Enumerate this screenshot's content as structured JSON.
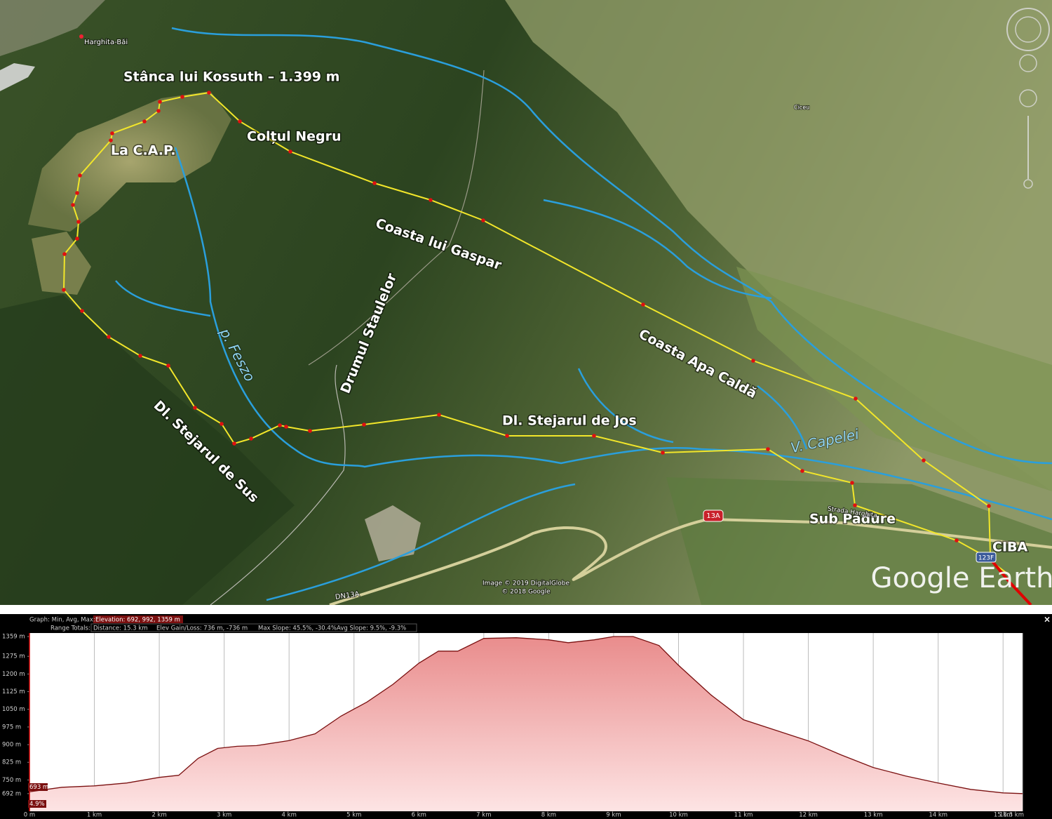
{
  "map": {
    "labels": {
      "peak": "Stânca lui Kossuth – 1.399 m",
      "coltul_negru": "Colțul Negru",
      "la_cap": "La C.A.P.",
      "coasta_gaspar": "Coasta lui Gaspar",
      "drumul_staulelor": "Drumul Staulelor",
      "p_feszo": "p. Feszo",
      "coasta_apa_calda": "Coasta Apa Caldă",
      "stejarul_sus": "Dl. Stejarul de Sus",
      "stejarul_jos": "Dl. Stejarul de Jos",
      "v_capelei": "V. Capelei",
      "sub_padure": "Sub Padure",
      "ciba": "CIBA",
      "harghita_bai": "Harghita-Băi",
      "ciceu": "Ciceu",
      "strada": "Strada Harghita",
      "road_13a": "13A",
      "road_123f": "123F",
      "dn13a": "DN13A"
    },
    "attribution": [
      "Image © 2019 DigitalGlobe",
      "© 2018 Google"
    ],
    "logo": "Google Earth"
  },
  "profile": {
    "close": "×",
    "header": {
      "graph_label": "Graph: Min, Avg, Max:",
      "elevation": "Elevation: 692, 992, 1359 m",
      "range_label": "Range Totals:",
      "distance": "Distance: 15.3 km",
      "elev_gain_loss": "Elev Gain/Loss: 736 m, -736 m",
      "max_slope": "Max Slope: 45.5%, -30.4%",
      "avg_slope": "Avg Slope: 9.5%, -9.3%"
    },
    "cursor": {
      "elevation": "693 m",
      "slope": "4.9%"
    }
  },
  "chart_data": {
    "type": "area",
    "x": [
      0,
      0.5,
      1,
      1.5,
      2,
      2.3,
      2.6,
      2.9,
      3.2,
      3.5,
      4,
      4.4,
      4.8,
      5.2,
      5.6,
      6,
      6.3,
      6.6,
      7,
      7.5,
      8,
      8.3,
      8.7,
      9,
      9.3,
      9.7,
      10,
      10.5,
      11,
      11.5,
      12,
      12.5,
      13,
      13.5,
      14,
      14.5,
      15,
      15.3
    ],
    "values": [
      700,
      719,
      725,
      737,
      761,
      770,
      842,
      884,
      893,
      896,
      917,
      946,
      1021,
      1081,
      1156,
      1246,
      1297,
      1297,
      1351,
      1354,
      1345,
      1333,
      1345,
      1359,
      1359,
      1321,
      1237,
      1111,
      1006,
      961,
      916,
      857,
      803,
      767,
      737,
      710,
      695,
      692
    ],
    "line_color": "#7a1010",
    "fill_color": "#e98c8c",
    "xlim": [
      0,
      15.3
    ],
    "ylim": [
      617,
      1374
    ],
    "grid": "x",
    "xticks": [
      {
        "value": 0,
        "label": "0 m"
      },
      {
        "value": 1,
        "label": "1 km"
      },
      {
        "value": 2,
        "label": "2 km"
      },
      {
        "value": 3,
        "label": "3 km"
      },
      {
        "value": 4,
        "label": "4 km"
      },
      {
        "value": 5,
        "label": "5 km"
      },
      {
        "value": 6,
        "label": "6 km"
      },
      {
        "value": 7,
        "label": "7 km"
      },
      {
        "value": 8,
        "label": "8 km"
      },
      {
        "value": 9,
        "label": "9 km"
      },
      {
        "value": 10,
        "label": "10 km"
      },
      {
        "value": 11,
        "label": "11 km"
      },
      {
        "value": 12,
        "label": "12 km"
      },
      {
        "value": 13,
        "label": "13 km"
      },
      {
        "value": 14,
        "label": "14 km"
      },
      {
        "value": 15,
        "label": "15 km"
      },
      {
        "value": 15.3,
        "label": "15.3 km"
      }
    ],
    "yticks": [
      {
        "value": 692,
        "label": "692 m"
      },
      {
        "value": 750,
        "label": "750 m"
      },
      {
        "value": 825,
        "label": "825 m"
      },
      {
        "value": 900,
        "label": "900 m"
      },
      {
        "value": 975,
        "label": "975 m"
      },
      {
        "value": 1050,
        "label": "1050 m"
      },
      {
        "value": 1125,
        "label": "1125 m"
      },
      {
        "value": 1200,
        "label": "1200 m"
      },
      {
        "value": 1275,
        "label": "1275 m"
      },
      {
        "value": 1359,
        "label": "1359 m"
      }
    ]
  }
}
